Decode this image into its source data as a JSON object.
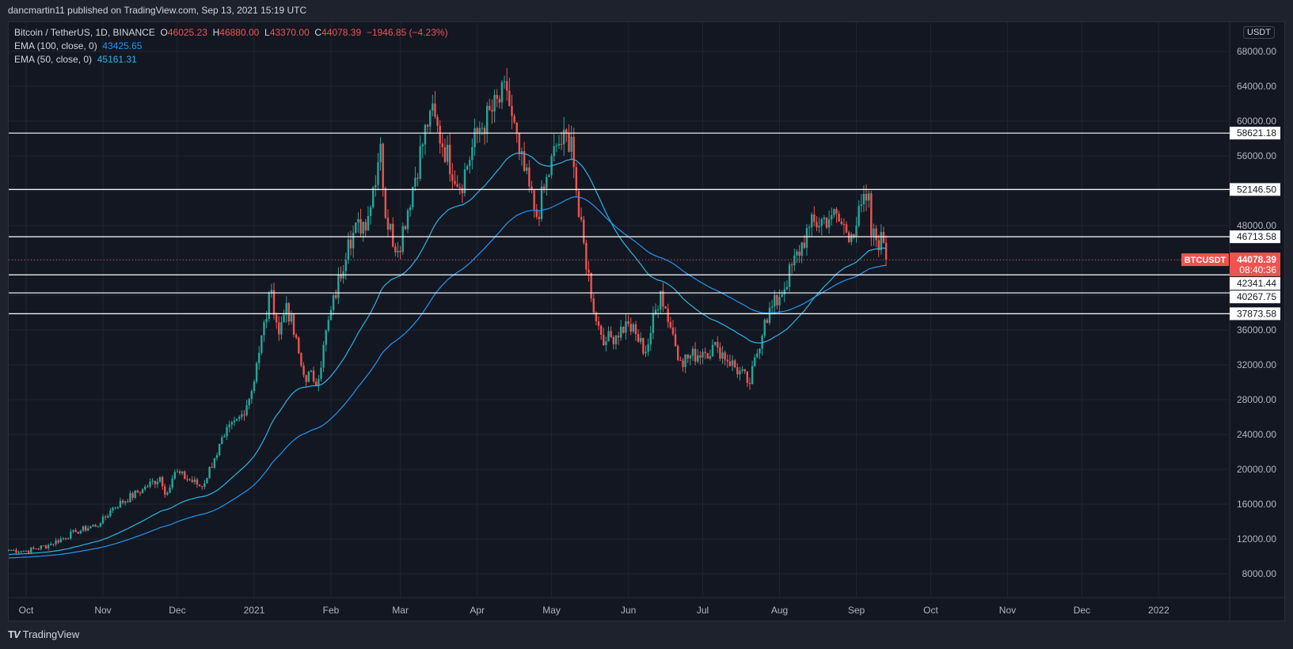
{
  "header": {
    "published": "dancmartin11 published on TradingView.com, Sep 13, 2021 15:19 UTC"
  },
  "legend": {
    "symbol": "Bitcoin / TetherUS, 1D, BINANCE",
    "o_label": "O",
    "o": "46025.23",
    "h_label": "H",
    "h": "46880.00",
    "l_label": "L",
    "l": "43370.00",
    "c_label": "C",
    "c": "44078.39",
    "change": "−1946.85 (−4.23%)",
    "ema100_label": "EMA (100, close, 0)",
    "ema100_value": "43425.65",
    "ema50_label": "EMA (50, close, 0)",
    "ema50_value": "45161.31"
  },
  "currency": "USDT",
  "footer": {
    "brand": "TradingView",
    "logo": "TV"
  },
  "colors": {
    "up": "#26a69a",
    "down": "#ef5350",
    "ema100": "#2196f3",
    "ema50": "#2fb4e0",
    "bg": "#131722"
  },
  "chart_data": {
    "type": "candlestick",
    "symbol": "BTCUSDT",
    "interval": "1D",
    "ylim": [
      4000,
      72000
    ],
    "y_ticks": [
      "68000.00",
      "64000.00",
      "60000.00",
      "56000.00",
      "48000.00",
      "36000.00",
      "32000.00",
      "28000.00",
      "24000.00",
      "20000.00",
      "16000.00",
      "12000.00",
      "8000.00"
    ],
    "x_ticks": [
      {
        "label": "Oct",
        "date": "2020-10-01"
      },
      {
        "label": "Nov",
        "date": "2020-11-01"
      },
      {
        "label": "Dec",
        "date": "2020-12-01"
      },
      {
        "label": "2021",
        "date": "2021-01-01"
      },
      {
        "label": "Feb",
        "date": "2021-02-01"
      },
      {
        "label": "Mar",
        "date": "2021-03-01"
      },
      {
        "label": "Apr",
        "date": "2021-04-01"
      },
      {
        "label": "May",
        "date": "2021-05-01"
      },
      {
        "label": "Jun",
        "date": "2021-06-01"
      },
      {
        "label": "Jul",
        "date": "2021-07-01"
      },
      {
        "label": "Aug",
        "date": "2021-08-01"
      },
      {
        "label": "Sep",
        "date": "2021-09-01"
      },
      {
        "label": "Oct",
        "date": "2021-10-01"
      },
      {
        "label": "Nov",
        "date": "2021-11-01"
      },
      {
        "label": "Dec",
        "date": "2021-12-01"
      },
      {
        "label": "2022",
        "date": "2022-01-01"
      }
    ],
    "close_keyframes": [
      [
        "2020-09-24",
        10730
      ],
      [
        "2020-10-01",
        10620
      ],
      [
        "2020-10-10",
        11300
      ],
      [
        "2020-10-21",
        12800
      ],
      [
        "2020-10-31",
        13800
      ],
      [
        "2020-11-05",
        15600
      ],
      [
        "2020-11-17",
        17700
      ],
      [
        "2020-11-24",
        19100
      ],
      [
        "2020-11-26",
        17100
      ],
      [
        "2020-11-30",
        19700
      ],
      [
        "2020-12-11",
        18000
      ],
      [
        "2020-12-16",
        21300
      ],
      [
        "2020-12-20",
        23800
      ],
      [
        "2020-12-27",
        26300
      ],
      [
        "2020-12-31",
        29000
      ],
      [
        "2021-01-02",
        32200
      ],
      [
        "2021-01-08",
        40600
      ],
      [
        "2021-01-11",
        35500
      ],
      [
        "2021-01-14",
        39100
      ],
      [
        "2021-01-21",
        30800
      ],
      [
        "2021-01-27",
        30400
      ],
      [
        "2021-01-29",
        34300
      ],
      [
        "2021-02-08",
        46400
      ],
      [
        "2021-02-16",
        49100
      ],
      [
        "2021-02-21",
        57400
      ],
      [
        "2021-02-23",
        48900
      ],
      [
        "2021-02-28",
        45100
      ],
      [
        "2021-03-13",
        61200
      ],
      [
        "2021-03-25",
        52300
      ],
      [
        "2021-04-01",
        58700
      ],
      [
        "2021-04-13",
        63500
      ],
      [
        "2021-04-18",
        56200
      ],
      [
        "2021-04-25",
        49000
      ],
      [
        "2021-05-03",
        57200
      ],
      [
        "2021-05-09",
        58200
      ],
      [
        "2021-05-12",
        49000
      ],
      [
        "2021-05-19",
        37000
      ],
      [
        "2021-05-23",
        34700
      ],
      [
        "2021-06-01",
        36700
      ],
      [
        "2021-06-08",
        33500
      ],
      [
        "2021-06-14",
        40500
      ],
      [
        "2021-06-22",
        32500
      ],
      [
        "2021-07-01",
        33500
      ],
      [
        "2021-07-07",
        34000
      ],
      [
        "2021-07-20",
        29800
      ],
      [
        "2021-07-26",
        37200
      ],
      [
        "2021-08-01",
        39800
      ],
      [
        "2021-08-13",
        47800
      ],
      [
        "2021-08-22",
        49200
      ],
      [
        "2021-08-30",
        47000
      ],
      [
        "2021-09-06",
        51700
      ],
      [
        "2021-09-07",
        46800
      ],
      [
        "2021-09-12",
        46025
      ],
      [
        "2021-09-13",
        44078.39
      ]
    ],
    "horizontal_levels": [
      "58621.18",
      "52146.50",
      "46713.58",
      "42341.44",
      "40267.75",
      "37873.58"
    ],
    "last_price": {
      "value": "44078.39",
      "label": "BTCUSDT",
      "countdown": "08:40:36"
    },
    "series": [
      {
        "name": "EMA 100",
        "period": 100
      },
      {
        "name": "EMA 50",
        "period": 50
      }
    ]
  }
}
